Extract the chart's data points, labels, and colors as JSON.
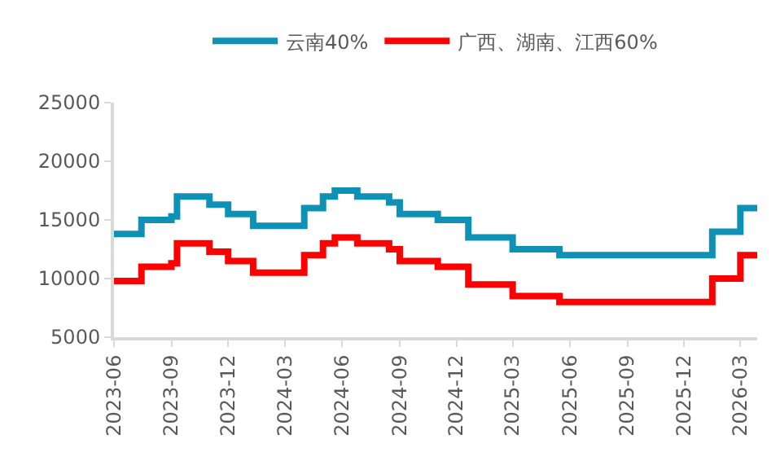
{
  "chart_data": {
    "type": "step",
    "x": [
      "2023-06-01",
      "2023-07-15",
      "2023-09-01",
      "2023-09-10",
      "2023-11-01",
      "2023-12-01",
      "2024-01-10",
      "2024-04-01",
      "2024-05-01",
      "2024-05-20",
      "2024-06-25",
      "2024-08-15",
      "2024-09-01",
      "2024-11-01",
      "2024-12-20",
      "2025-03-01",
      "2025-05-15",
      "2026-01-15",
      "2026-03-01",
      "2026-03-28"
    ],
    "series": [
      {
        "name": "云南40%",
        "color": "#0f91b6",
        "values": [
          13800,
          15000,
          15300,
          17000,
          16300,
          15500,
          14500,
          16000,
          17000,
          17500,
          17000,
          16500,
          15500,
          15000,
          13500,
          12500,
          12000,
          14000,
          16000,
          16000
        ]
      },
      {
        "name": "广西、湖南、江西60%",
        "color": "#ff0000",
        "values": [
          9800,
          11000,
          11300,
          13000,
          12300,
          11500,
          10500,
          12000,
          13000,
          13500,
          13000,
          12500,
          11500,
          11000,
          9500,
          8500,
          8000,
          10000,
          12000,
          12000
        ]
      }
    ],
    "xlim": [
      "2023-06-01",
      "2026-03-28"
    ],
    "xticks": [
      "2023-06",
      "2023-09",
      "2023-12",
      "2024-03",
      "2024-06",
      "2024-09",
      "2024-12",
      "2025-03",
      "2025-06",
      "2025-09",
      "2025-12",
      "2026-03"
    ],
    "ylim": [
      5000,
      25000
    ],
    "yticks": [
      5000,
      10000,
      15000,
      20000,
      25000
    ],
    "grid": false,
    "legend": "top",
    "line_style": "solid",
    "marker": "none"
  }
}
